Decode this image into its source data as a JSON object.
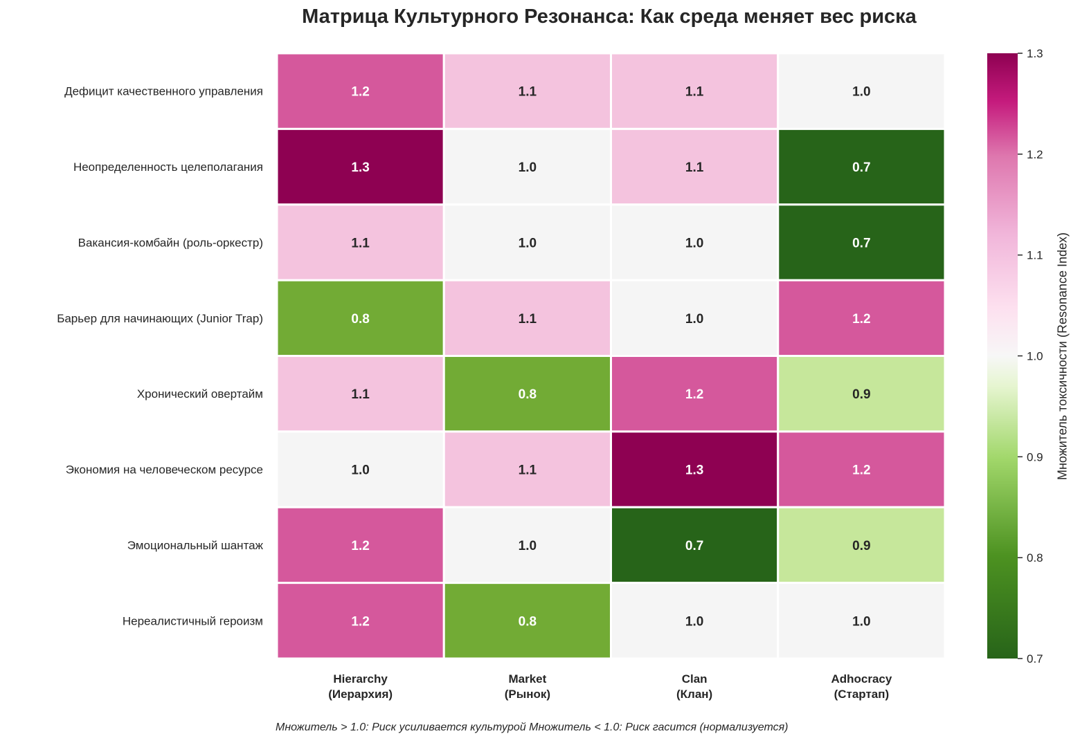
{
  "chart_data": {
    "type": "heatmap",
    "title": "Матрица Культурного Резонанса: Как среда меняет вес риска",
    "rows": [
      "Дефицит качественного управления",
      "Неопределенность целеполагания",
      "Вакансия-комбайн (роль-оркестр)",
      "Барьер для начинающих (Junior Trap)",
      "Хронический овертайм",
      "Экономия на человеческом ресурсе",
      "Эмоциональный шантаж",
      "Нереалистичный героизм"
    ],
    "columns": [
      [
        "Hierarchy",
        "(Иерархия)"
      ],
      [
        "Market",
        "(Рынок)"
      ],
      [
        "Clan",
        "(Клан)"
      ],
      [
        "Adhocracy",
        "(Стартап)"
      ]
    ],
    "values": [
      [
        1.2,
        1.1,
        1.1,
        1.0
      ],
      [
        1.3,
        1.0,
        1.1,
        0.7
      ],
      [
        1.1,
        1.0,
        1.0,
        0.7
      ],
      [
        0.8,
        1.1,
        1.0,
        1.2
      ],
      [
        1.1,
        0.8,
        1.2,
        0.9
      ],
      [
        1.0,
        1.1,
        1.3,
        1.2
      ],
      [
        1.2,
        1.0,
        0.7,
        0.9
      ],
      [
        1.2,
        0.8,
        1.0,
        1.0
      ]
    ],
    "colormap": "PiYG_r",
    "vmin": 0.7,
    "vmax": 1.3,
    "colorbar_ticks": [
      "0.7",
      "0.8",
      "0.9",
      "1.0",
      "1.1",
      "1.2",
      "1.3"
    ],
    "colorbar_label": "Множитель токсичности (Resonance Index)",
    "footnote": "Множитель > 1.0: Риск усиливается культурой  Множитель < 1.0: Риск гасится (нормализуется)"
  },
  "colors": {
    "0.7": "#276419",
    "0.8": "#72ab35",
    "0.9": "#c6e79b",
    "1.0": "#f5f5f5",
    "1.1": "#f4c3de",
    "1.2": "#d5589c",
    "1.3": "#8e0152"
  }
}
